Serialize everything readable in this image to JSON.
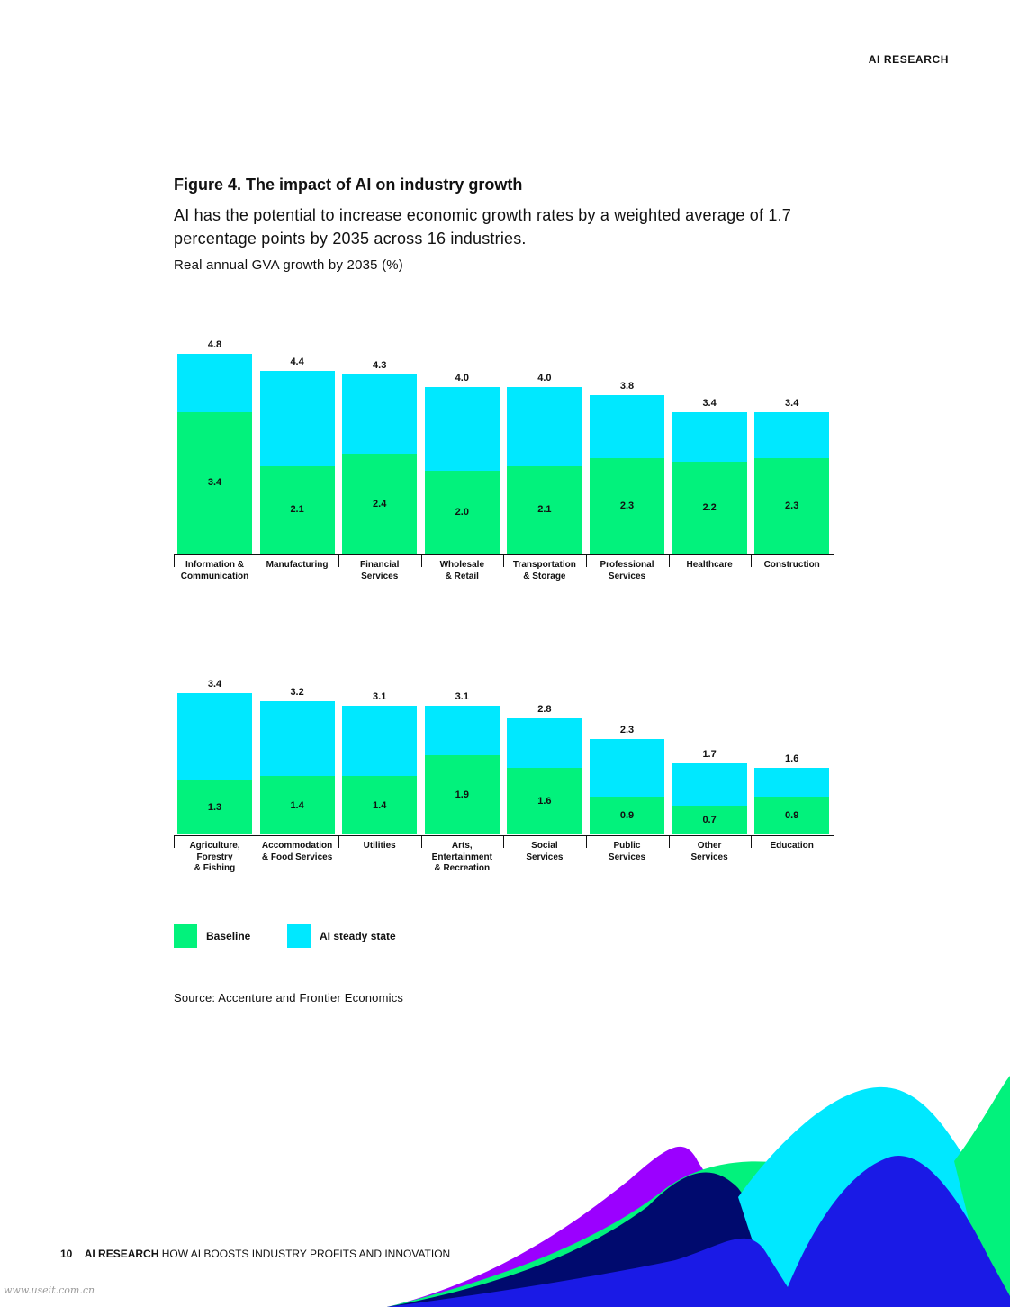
{
  "header": "AI RESEARCH",
  "title": "Figure 4. The impact of AI on industry growth",
  "subtitle": "AI has the potential to increase economic growth rates by a weighted average of 1.7 percentage points by 2035 across 16 industries.",
  "unit_label": "Real annual GVA growth by 2035 (%)",
  "chart_data": [
    {
      "type": "bar",
      "categories": [
        "Information &\nCommunication",
        "Manufacturing",
        "Financial\nServices",
        "Wholesale\n& Retail",
        "Transportation\n& Storage",
        "Professional\nServices",
        "Healthcare",
        "Construction"
      ],
      "series": [
        {
          "name": "Baseline",
          "color": "#02f27c",
          "values": [
            3.4,
            2.1,
            2.4,
            2.0,
            2.1,
            2.3,
            2.2,
            2.3
          ],
          "value_labels": [
            "3.4",
            "2.1",
            "2.4",
            "2.0",
            "2.1",
            "2.3",
            "2.2",
            "2.3"
          ]
        },
        {
          "name": "AI steady state",
          "color": "#00e8ff",
          "values": [
            4.8,
            4.4,
            4.3,
            4.0,
            4.0,
            3.8,
            3.4,
            3.4
          ],
          "value_labels": [
            "4.8",
            "4.4",
            "4.3",
            "4.0",
            "4.0",
            "3.8",
            "3.4",
            "3.4"
          ]
        }
      ]
    },
    {
      "type": "bar",
      "categories": [
        "Agriculture,\nForestry\n& Fishing",
        "Accommodation\n& Food Services",
        "Utilities",
        "Arts,\nEntertainment\n& Recreation",
        "Social\nServices",
        "Public\nServices",
        "Other\nServices",
        "Education"
      ],
      "series": [
        {
          "color": "#02f27c",
          "values": [
            1.3,
            1.4,
            1.4,
            1.9,
            1.6,
            0.9,
            0.7,
            0.9
          ],
          "value_labels": [
            "1.3",
            "1.4",
            "1.4",
            "1.9",
            "1.6",
            "0.9",
            "0.7",
            "0.9"
          ]
        },
        {
          "color": "#00e8ff",
          "values": [
            3.4,
            3.2,
            3.1,
            3.1,
            2.8,
            2.3,
            1.7,
            1.6
          ],
          "value_labels": [
            "3.4",
            "3.2",
            "3.1",
            "3.1",
            "2.8",
            "2.3",
            "1.7",
            "1.6"
          ]
        }
      ]
    }
  ],
  "source": "Source: Accenture and Frontier Economics",
  "footer": {
    "page": "10",
    "section": "AI RESEARCH",
    "title": "HOW AI BOOSTS INDUSTRY PROFITS AND INNOVATION"
  },
  "watermark": "www.useit.com.cn"
}
